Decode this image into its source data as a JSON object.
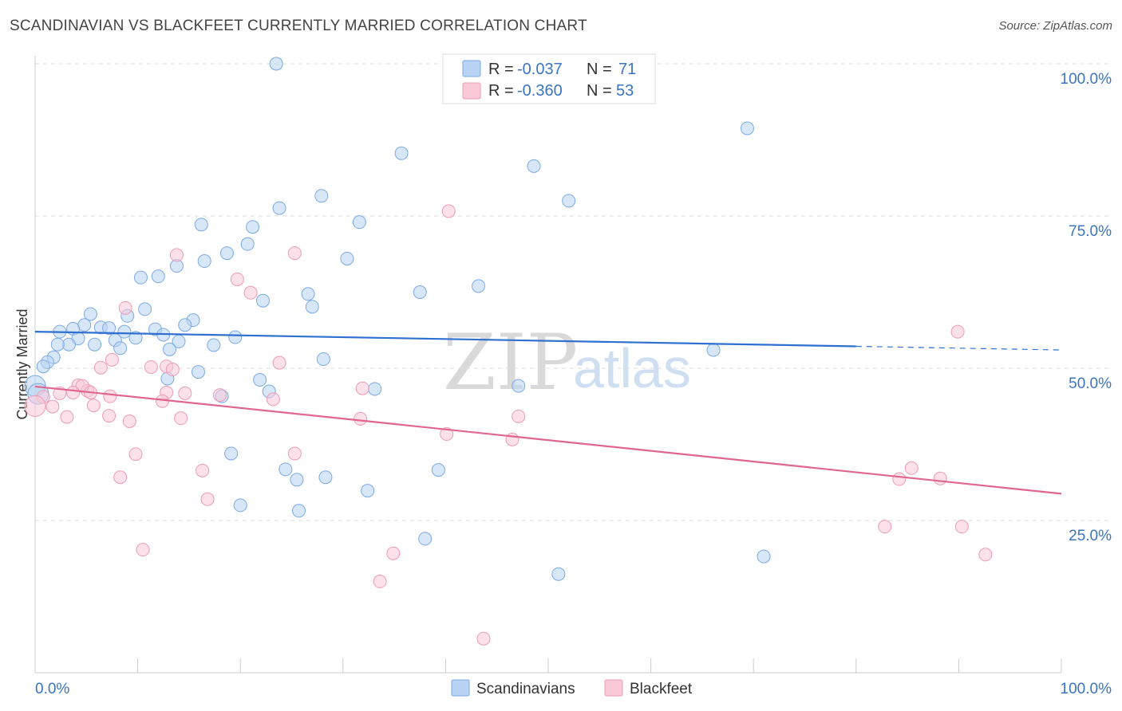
{
  "header": {
    "title": "SCANDINAVIAN VS BLACKFEET CURRENTLY MARRIED CORRELATION CHART",
    "source": "Source: ZipAtlas.com"
  },
  "watermark": {
    "zip": "ZIP",
    "atlas": "atlas"
  },
  "legend": {
    "r_label": "R =",
    "n_label": "N =",
    "rows": [
      {
        "name": "Scandinavians",
        "r": "-0.037",
        "n": "71",
        "fill": "#b8d3f3",
        "stroke": "#7aaae6"
      },
      {
        "name": "Blackfeet",
        "r": "-0.360",
        "n": "53",
        "fill": "#f9c9d8",
        "stroke": "#ee9bb6"
      }
    ]
  },
  "colors": {
    "blue_line": "#2f6fd0",
    "pink_line": "#e0668f",
    "grid": "#dddddd",
    "tick_text": "#3a74c4"
  },
  "chart_data": {
    "type": "scatter",
    "title": "SCANDINAVIAN VS BLACKFEET CURRENTLY MARRIED CORRELATION CHART",
    "xlabel": "",
    "ylabel": "Currently Married",
    "xlim": [
      0,
      100
    ],
    "ylim": [
      0,
      100
    ],
    "x_tick_labels": [
      "0.0%",
      "100.0%"
    ],
    "y_ticks": [
      25,
      50,
      75,
      100
    ],
    "y_tick_labels": [
      "25.0%",
      "50.0%",
      "75.0%",
      "100.0%"
    ],
    "series": [
      {
        "name": "Scandinavians",
        "r": -0.037,
        "n": 71,
        "trend": {
          "x0": 0,
          "y0": 56.0,
          "x1": 80,
          "y1": 53.6,
          "dash_to_x": 100,
          "dash_to_y": 53.0
        },
        "points": [
          [
            23.5,
            100.0
          ],
          [
            69.4,
            89.4
          ],
          [
            35.7,
            85.3
          ],
          [
            48.6,
            83.2
          ],
          [
            27.9,
            78.3
          ],
          [
            52.0,
            77.5
          ],
          [
            23.8,
            76.3
          ],
          [
            31.6,
            74.0
          ],
          [
            16.2,
            73.6
          ],
          [
            21.2,
            73.2
          ],
          [
            20.7,
            70.4
          ],
          [
            18.7,
            68.9
          ],
          [
            16.5,
            67.6
          ],
          [
            30.4,
            68.0
          ],
          [
            13.8,
            66.8
          ],
          [
            12.0,
            65.1
          ],
          [
            10.3,
            64.9
          ],
          [
            43.2,
            63.5
          ],
          [
            37.5,
            62.5
          ],
          [
            26.6,
            62.2
          ],
          [
            22.2,
            61.1
          ],
          [
            27.0,
            60.1
          ],
          [
            10.7,
            59.7
          ],
          [
            5.4,
            58.9
          ],
          [
            9.0,
            58.6
          ],
          [
            15.4,
            57.9
          ],
          [
            14.6,
            57.1
          ],
          [
            4.8,
            57.1
          ],
          [
            3.7,
            56.5
          ],
          [
            6.4,
            56.7
          ],
          [
            7.2,
            56.6
          ],
          [
            8.7,
            56.0
          ],
          [
            11.7,
            56.4
          ],
          [
            2.4,
            56.0
          ],
          [
            12.5,
            55.5
          ],
          [
            9.8,
            55.0
          ],
          [
            19.5,
            55.1
          ],
          [
            4.2,
            54.9
          ],
          [
            7.8,
            54.6
          ],
          [
            14.0,
            54.4
          ],
          [
            3.3,
            53.9
          ],
          [
            5.8,
            53.9
          ],
          [
            2.2,
            53.9
          ],
          [
            17.4,
            53.8
          ],
          [
            8.3,
            53.3
          ],
          [
            13.1,
            53.1
          ],
          [
            66.1,
            53.0
          ],
          [
            1.8,
            51.8
          ],
          [
            28.1,
            51.5
          ],
          [
            1.2,
            51.0
          ],
          [
            0.8,
            50.3
          ],
          [
            15.9,
            49.4
          ],
          [
            12.9,
            48.3
          ],
          [
            21.9,
            48.1
          ],
          [
            0.0,
            47.1
          ],
          [
            0.3,
            45.8
          ],
          [
            22.8,
            46.2
          ],
          [
            33.1,
            46.6
          ],
          [
            47.1,
            47.1
          ],
          [
            18.2,
            45.4
          ],
          [
            19.1,
            36.0
          ],
          [
            24.4,
            33.4
          ],
          [
            39.3,
            33.3
          ],
          [
            25.5,
            31.7
          ],
          [
            28.3,
            32.1
          ],
          [
            32.4,
            29.9
          ],
          [
            20.0,
            27.5
          ],
          [
            25.7,
            26.6
          ],
          [
            38.0,
            22.0
          ],
          [
            71.0,
            19.1
          ],
          [
            51.0,
            16.2
          ]
        ]
      },
      {
        "name": "Blackfeet",
        "r": -0.36,
        "n": 53,
        "trend": {
          "x0": 0,
          "y0": 47.0,
          "x1": 100,
          "y1": 29.4
        },
        "points": [
          [
            40.3,
            75.8
          ],
          [
            13.8,
            68.6
          ],
          [
            25.3,
            68.9
          ],
          [
            19.7,
            64.6
          ],
          [
            21.0,
            62.4
          ],
          [
            8.8,
            59.9
          ],
          [
            89.9,
            56.0
          ],
          [
            7.5,
            51.4
          ],
          [
            6.4,
            50.1
          ],
          [
            11.3,
            50.2
          ],
          [
            12.8,
            50.3
          ],
          [
            13.4,
            49.8
          ],
          [
            23.8,
            50.9
          ],
          [
            4.2,
            47.2
          ],
          [
            5.1,
            46.3
          ],
          [
            4.6,
            47.1
          ],
          [
            2.4,
            45.9
          ],
          [
            3.7,
            46.0
          ],
          [
            5.4,
            46.0
          ],
          [
            7.3,
            45.4
          ],
          [
            0.8,
            45.3
          ],
          [
            12.8,
            46.0
          ],
          [
            31.9,
            46.7
          ],
          [
            14.6,
            45.9
          ],
          [
            18.0,
            45.6
          ],
          [
            23.2,
            44.9
          ],
          [
            12.4,
            44.6
          ],
          [
            5.7,
            43.9
          ],
          [
            0.0,
            43.8
          ],
          [
            1.7,
            43.7
          ],
          [
            7.2,
            42.2
          ],
          [
            3.1,
            42.0
          ],
          [
            9.2,
            41.3
          ],
          [
            14.2,
            41.8
          ],
          [
            31.7,
            41.7
          ],
          [
            47.1,
            42.1
          ],
          [
            40.1,
            39.2
          ],
          [
            46.5,
            38.3
          ],
          [
            9.8,
            35.9
          ],
          [
            25.3,
            36.0
          ],
          [
            16.3,
            33.2
          ],
          [
            85.4,
            33.6
          ],
          [
            8.3,
            32.1
          ],
          [
            84.2,
            31.8
          ],
          [
            88.2,
            31.9
          ],
          [
            16.8,
            28.5
          ],
          [
            82.8,
            24.0
          ],
          [
            90.3,
            24.0
          ],
          [
            10.5,
            20.2
          ],
          [
            34.9,
            19.6
          ],
          [
            92.6,
            19.4
          ],
          [
            33.6,
            15.0
          ],
          [
            43.7,
            5.6
          ]
        ]
      }
    ]
  }
}
